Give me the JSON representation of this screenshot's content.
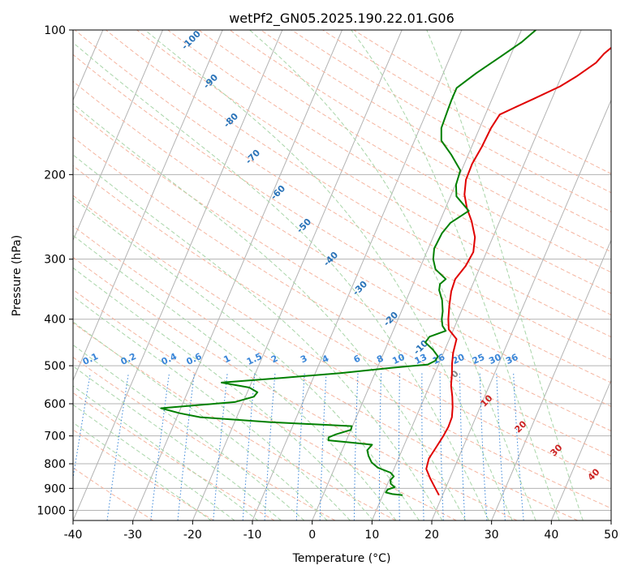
{
  "chart_data": {
    "type": "line",
    "title": "wetPf2_GN05.2025.190.22.01.G06",
    "xlabel": "Temperature (°C)",
    "ylabel": "Pressure (hPa)",
    "xlim": [
      -40,
      50
    ],
    "ylim": [
      1050,
      100
    ],
    "y_scale": "log",
    "x_ticks": [
      -40,
      -30,
      -20,
      -10,
      0,
      10,
      20,
      30,
      40,
      50
    ],
    "y_ticks": [
      100,
      200,
      300,
      400,
      500,
      600,
      700,
      800,
      900,
      1000
    ],
    "grid": true,
    "series": [
      {
        "color": "#e00000",
        "points": [
          [
            19.4,
            930
          ],
          [
            18.3,
            900
          ],
          [
            16.8,
            860
          ],
          [
            15.4,
            820
          ],
          [
            15.1,
            780
          ],
          [
            15.5,
            740
          ],
          [
            15.9,
            700
          ],
          [
            16.1,
            670
          ],
          [
            16.0,
            640
          ],
          [
            15.4,
            610
          ],
          [
            14.6,
            580
          ],
          [
            13.6,
            550
          ],
          [
            12.9,
            520
          ],
          [
            12.2,
            495
          ],
          [
            11.6,
            470
          ],
          [
            11.2,
            440
          ],
          [
            9.2,
            420
          ],
          [
            8.4,
            400
          ],
          [
            7.6,
            375
          ],
          [
            6.9,
            350
          ],
          [
            6.7,
            330
          ],
          [
            7.5,
            310
          ],
          [
            7.8,
            290
          ],
          [
            7.0,
            270
          ],
          [
            5.3,
            250
          ],
          [
            3.6,
            235
          ],
          [
            2.2,
            220
          ],
          [
            1.4,
            205
          ],
          [
            1.3,
            190
          ],
          [
            1.7,
            175
          ],
          [
            1.9,
            160
          ],
          [
            2.4,
            150
          ],
          [
            4.4,
            145
          ],
          [
            7.0,
            139
          ],
          [
            10.5,
            131
          ],
          [
            12.5,
            125
          ],
          [
            14.8,
            117
          ],
          [
            15.5,
            112
          ],
          [
            16.5,
            108
          ],
          [
            17.6,
            104
          ],
          [
            18.3,
            100
          ]
        ]
      },
      {
        "color": "#008000",
        "points": [
          [
            13.3,
            930
          ],
          [
            11.5,
            925
          ],
          [
            10.3,
            918
          ],
          [
            10.4,
            905
          ],
          [
            11.4,
            895
          ],
          [
            10.5,
            880
          ],
          [
            10.2,
            865
          ],
          [
            10.5,
            850
          ],
          [
            9.7,
            835
          ],
          [
            7.2,
            815
          ],
          [
            5.8,
            795
          ],
          [
            4.8,
            770
          ],
          [
            4.2,
            750
          ],
          [
            4.6,
            730
          ],
          [
            0.6,
            722
          ],
          [
            -3.0,
            715
          ],
          [
            -3.2,
            705
          ],
          [
            -2.2,
            695
          ],
          [
            0.0,
            680
          ],
          [
            -0.1,
            668
          ],
          [
            -14.2,
            655
          ],
          [
            -26.1,
            640
          ],
          [
            -29.8,
            628
          ],
          [
            -33.3,
            613
          ],
          [
            -21.4,
            595
          ],
          [
            -18.6,
            580
          ],
          [
            -18.3,
            568
          ],
          [
            -20.0,
            555
          ],
          [
            -25.0,
            542
          ],
          [
            -15.2,
            530
          ],
          [
            -5.8,
            518
          ],
          [
            2.3,
            505
          ],
          [
            8.2,
            497
          ],
          [
            9.2,
            488
          ],
          [
            9.3,
            478
          ],
          [
            8.0,
            463
          ],
          [
            6.2,
            447
          ],
          [
            6.5,
            435
          ],
          [
            8.8,
            423
          ],
          [
            7.9,
            413
          ],
          [
            7.3,
            400
          ],
          [
            6.9,
            385
          ],
          [
            6.0,
            365
          ],
          [
            4.8,
            348
          ],
          [
            4.5,
            338
          ],
          [
            5.1,
            330
          ],
          [
            2.7,
            315
          ],
          [
            1.6,
            300
          ],
          [
            1.0,
            285
          ],
          [
            1.2,
            265
          ],
          [
            1.9,
            252
          ],
          [
            4.1,
            238
          ],
          [
            1.0,
            222
          ],
          [
            0.1,
            210
          ],
          [
            -0.2,
            196
          ],
          [
            -2.8,
            182
          ],
          [
            -5.5,
            170
          ],
          [
            -6.4,
            160
          ],
          [
            -6.6,
            147
          ],
          [
            -6.7,
            140
          ],
          [
            -6.7,
            132
          ],
          [
            -4.5,
            123
          ],
          [
            -1.7,
            114
          ],
          [
            0.9,
            106
          ],
          [
            2.4,
            100
          ]
        ]
      }
    ],
    "mixing_ratio_labels": [
      "0.1",
      "0.2",
      "0.4",
      "0.6",
      "1",
      "1.5",
      "2",
      "3",
      "4",
      "6",
      "8",
      "10",
      "13",
      "16",
      "20",
      "25",
      "30",
      "36"
    ],
    "moist_adiabat_labels": [
      "-100",
      "-90",
      "-80",
      "-70",
      "-60",
      "-50",
      "-40",
      "-30",
      "-20",
      "-10",
      "0",
      "10",
      "20",
      "30",
      "40"
    ]
  },
  "colors": {
    "temperature": "#e00000",
    "dewpoint": "#008000",
    "isotherm": "#b3b3b3",
    "isobar": "#b3b3b3",
    "dry_adiabat": "#f5b5a0",
    "moist_adiabat": "#a8d5a8",
    "mixing_ratio": "#3a86d8",
    "adiabat_label_blue": "#2a73b8",
    "adiabat_label_red": "#cc2222",
    "frame": "#000000"
  }
}
